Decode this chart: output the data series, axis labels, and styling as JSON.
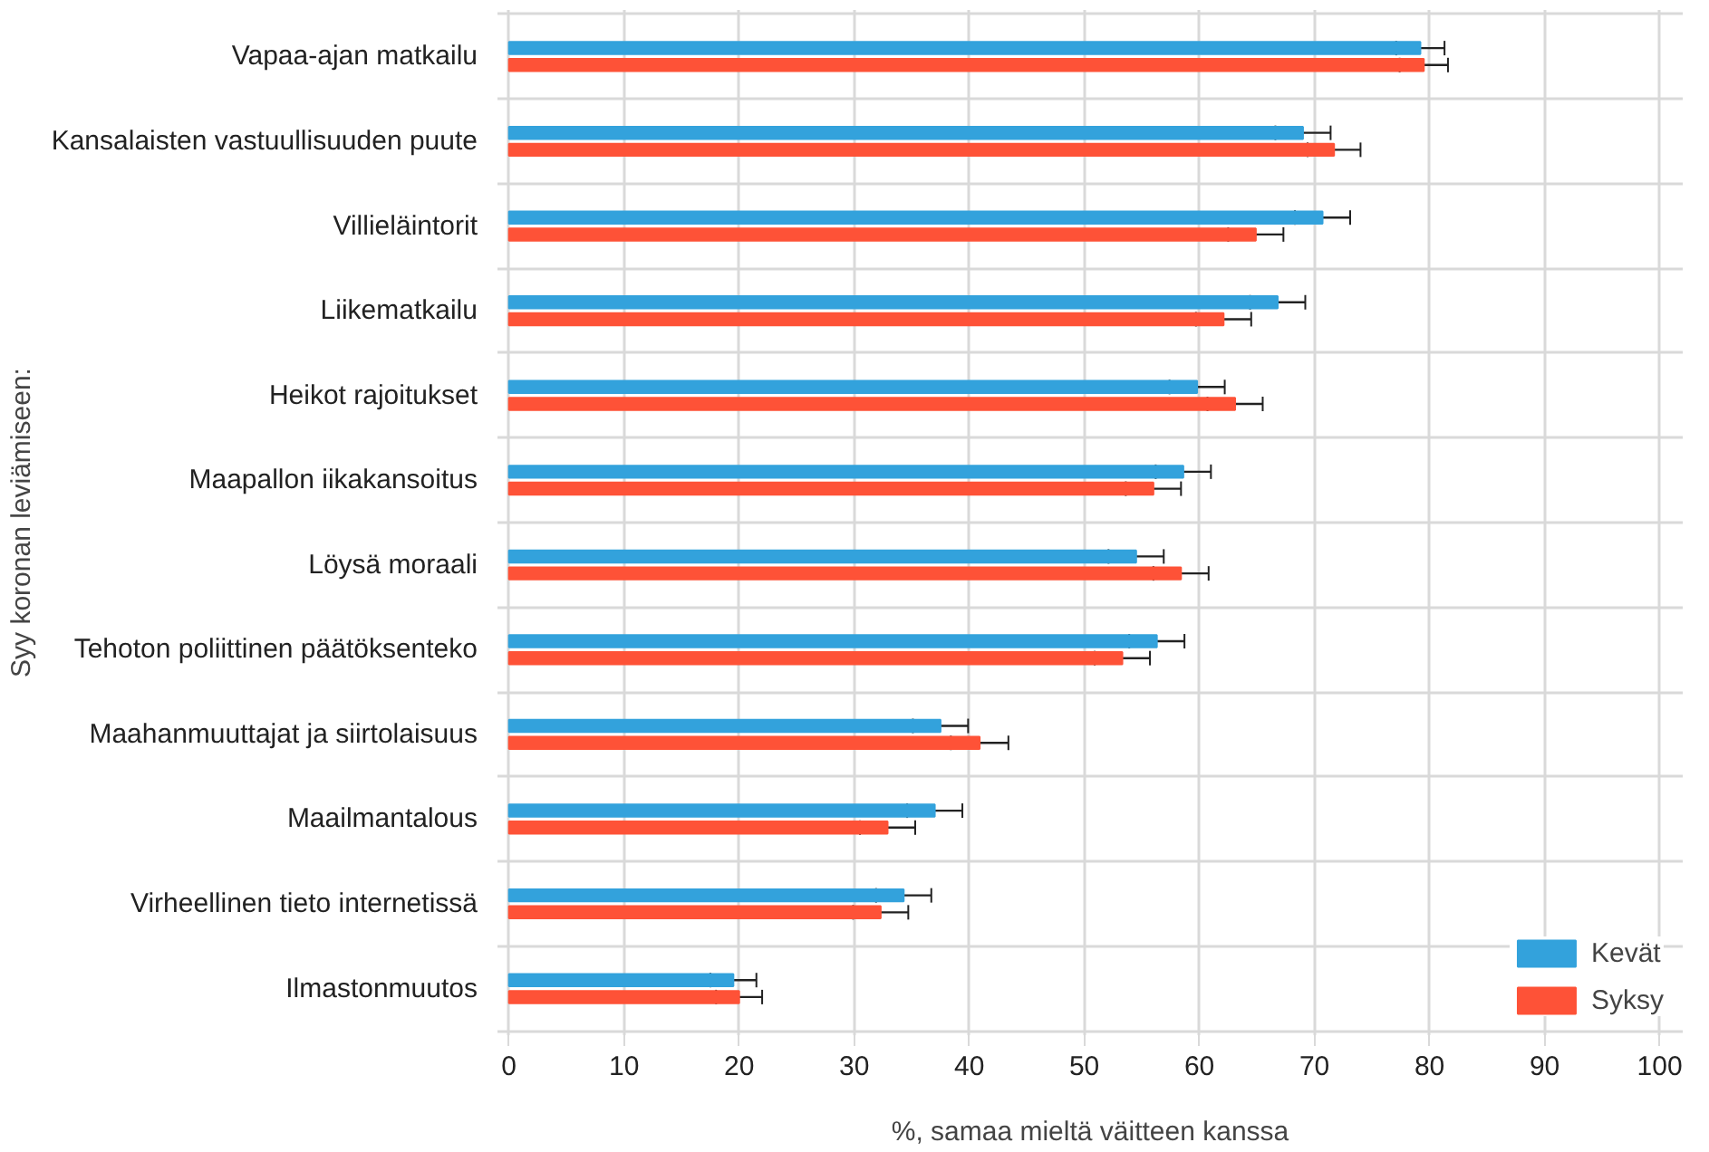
{
  "chart_data": {
    "type": "bar",
    "orientation": "horizontal",
    "xlabel": "%, samaa mieltä väitteen kanssa",
    "ylabel": "Syy koronan leviämiseen:",
    "categories": [
      "Vapaa-ajan matkailu",
      "Kansalaisten vastuullisuuden puute",
      "Villieläintorit",
      "Liikematkailu",
      "Heikot rajoitukset",
      "Maapallon iikakansoitus",
      "Löysä moraali",
      "Tehoton poliittinen päätöksenteko",
      "Maahanmuuttajat ja siirtolaisuus",
      "Maailmantalous",
      "Virheellinen tieto internetissä",
      "Ilmastonmuutos"
    ],
    "series": [
      {
        "name": "Kevät",
        "color": "#33a2dc",
        "values": [
          79.2,
          69.0,
          70.7,
          66.8,
          59.8,
          58.6,
          54.5,
          56.3,
          37.5,
          37.0,
          34.3,
          19.5
        ],
        "errors": [
          2.1,
          2.4,
          2.4,
          2.4,
          2.4,
          2.4,
          2.4,
          2.4,
          2.4,
          2.4,
          2.4,
          2.0
        ]
      },
      {
        "name": "Syksy",
        "color": "#fe5237",
        "values": [
          79.5,
          71.7,
          64.9,
          62.1,
          63.1,
          56.0,
          58.4,
          53.3,
          40.9,
          32.9,
          32.3,
          20.0
        ],
        "errors": [
          2.1,
          2.3,
          2.4,
          2.4,
          2.4,
          2.4,
          2.4,
          2.4,
          2.5,
          2.4,
          2.4,
          2.0
        ]
      }
    ],
    "xlim": [
      -1,
      102
    ],
    "xticks": [
      0,
      10,
      20,
      30,
      40,
      50,
      60,
      70,
      80,
      90,
      100
    ],
    "grid": true,
    "legend": "bottom right"
  }
}
